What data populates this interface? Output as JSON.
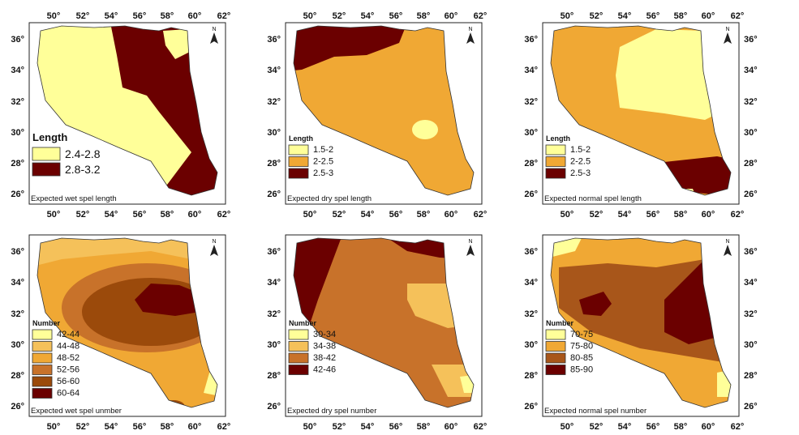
{
  "ticks": {
    "lon": [
      "50°",
      "52°",
      "54°",
      "56°",
      "58°",
      "60°",
      "62°"
    ],
    "lat": [
      "36°",
      "34°",
      "32°",
      "30°",
      "28°",
      "26°"
    ]
  },
  "north_label": "N",
  "colors": {
    "c1": "#ffff99",
    "c2": "#f0a834",
    "c3": "#9b4a0b",
    "c4": "#6b0000",
    "yellow": "#ffff99",
    "ltorange": "#f5c15a",
    "orange": "#f0a834",
    "dkorange": "#d88a2a",
    "brown": "#a8561a",
    "rust": "#9b4a0b",
    "maroon": "#6b0000"
  },
  "panels": [
    {
      "caption": "Expected wet spel length",
      "legend": {
        "title": "Length",
        "items": [
          {
            "label": "2.4-2.8",
            "color": "#ffff99"
          },
          {
            "label": "2.8-3.2",
            "color": "#6b0000"
          }
        ]
      }
    },
    {
      "caption": "Expected dry spel length",
      "legend": {
        "title": "Length",
        "items": [
          {
            "label": "1.5-2",
            "color": "#ffff99"
          },
          {
            "label": "2-2.5",
            "color": "#f0a834"
          },
          {
            "label": "2.5-3",
            "color": "#6b0000"
          }
        ]
      }
    },
    {
      "caption": "Expected normal spel length",
      "legend": {
        "title": "Length",
        "items": [
          {
            "label": "1.5-2",
            "color": "#ffff99"
          },
          {
            "label": "2-2.5",
            "color": "#f0a834"
          },
          {
            "label": "2.5-3",
            "color": "#6b0000"
          }
        ]
      }
    },
    {
      "caption": "Expected wet spel unmber",
      "legend": {
        "title": "Number",
        "items": [
          {
            "label": "42-44",
            "color": "#ffff99"
          },
          {
            "label": "44-48",
            "color": "#f5c15a"
          },
          {
            "label": "48-52",
            "color": "#f0a834"
          },
          {
            "label": "52-56",
            "color": "#c8722a"
          },
          {
            "label": "56-60",
            "color": "#9b4a0b"
          },
          {
            "label": "60-64",
            "color": "#6b0000"
          }
        ]
      }
    },
    {
      "caption": "Expected dry spel number",
      "legend": {
        "title": "Number",
        "items": [
          {
            "label": "30-34",
            "color": "#ffff99"
          },
          {
            "label": "34-38",
            "color": "#f5c15a"
          },
          {
            "label": "38-42",
            "color": "#c8722a"
          },
          {
            "label": "42-46",
            "color": "#6b0000"
          }
        ]
      }
    },
    {
      "caption": "Expected normal spel number",
      "legend": {
        "title": "Number",
        "items": [
          {
            "label": "70-75",
            "color": "#ffff99"
          },
          {
            "label": "75-80",
            "color": "#f0a834"
          },
          {
            "label": "80-85",
            "color": "#a8561a"
          },
          {
            "label": "85-90",
            "color": "#6b0000"
          }
        ]
      }
    }
  ]
}
